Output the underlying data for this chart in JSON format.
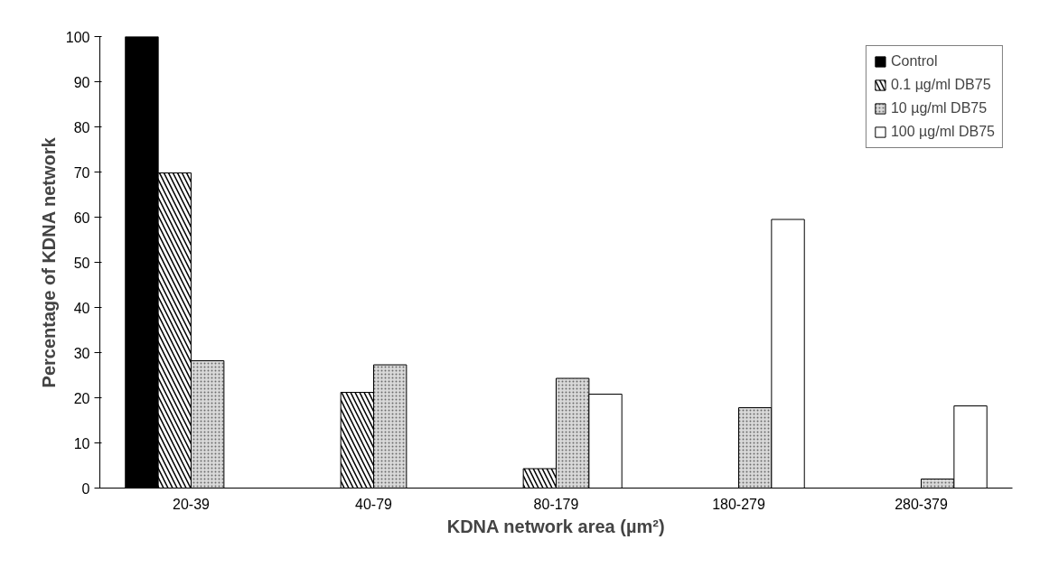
{
  "chart_data": {
    "type": "bar",
    "xlabel": "KDNA network area (µm²)",
    "ylabel": "Percentage of KDNA network",
    "categories": [
      "20-39",
      "40-79",
      "80-179",
      "180-279",
      "280-379"
    ],
    "series": [
      {
        "name": "Control",
        "color": "#000000",
        "values": [
          100,
          null,
          null,
          null,
          null
        ]
      },
      {
        "name": "0.1 µg/ml DB75",
        "color": "#000000",
        "values": [
          69.8,
          21.2,
          4.3,
          null,
          null
        ]
      },
      {
        "name": "10 µg/ml DB75",
        "color": "#d9d9d9",
        "values": [
          28.2,
          27.3,
          24.3,
          17.8,
          2
        ]
      },
      {
        "name": "100 µg/ml DB75",
        "color": "#ffffff",
        "values": [
          null,
          null,
          20.8,
          59.5,
          18.2
        ]
      }
    ],
    "ylim": [
      0,
      100
    ],
    "yticks": [
      0,
      10,
      20,
      30,
      40,
      50,
      60,
      70,
      80,
      90,
      100
    ],
    "grid": false,
    "legend": "top right"
  }
}
